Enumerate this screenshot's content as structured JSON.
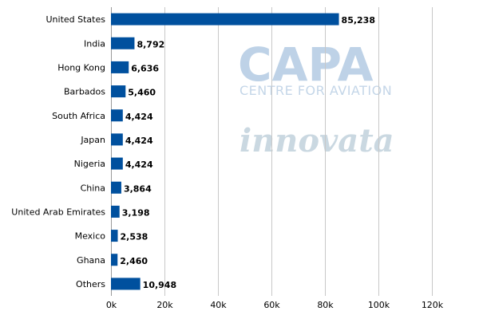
{
  "watermarks": {
    "capa": "CAPA",
    "centre": "CENTRE FOR AVIATION",
    "innovata": "innovata"
  },
  "chart_data": {
    "type": "bar",
    "orientation": "horizontal",
    "categories": [
      "United States",
      "India",
      "Hong Kong",
      "Barbados",
      "South Africa",
      "Japan",
      "Nigeria",
      "China",
      "United Arab Emirates",
      "Mexico",
      "Ghana",
      "Others"
    ],
    "values": [
      85238,
      8792,
      6636,
      5460,
      4424,
      4424,
      4424,
      3864,
      3198,
      2538,
      2460,
      10948
    ],
    "value_labels": [
      "85,238",
      "8,792",
      "6,636",
      "5,460",
      "4,424",
      "4,424",
      "4,424",
      "3,864",
      "3,198",
      "2,538",
      "2,460",
      "10,948"
    ],
    "xlim": [
      0,
      120000
    ],
    "x_ticks": [
      0,
      20000,
      40000,
      60000,
      80000,
      100000,
      120000
    ],
    "x_tick_labels": [
      "0k",
      "20k",
      "40k",
      "60k",
      "80k",
      "100k",
      "120k"
    ],
    "bar_color": "#00509e",
    "grid": true,
    "title": "",
    "xlabel": "",
    "ylabel": ""
  }
}
